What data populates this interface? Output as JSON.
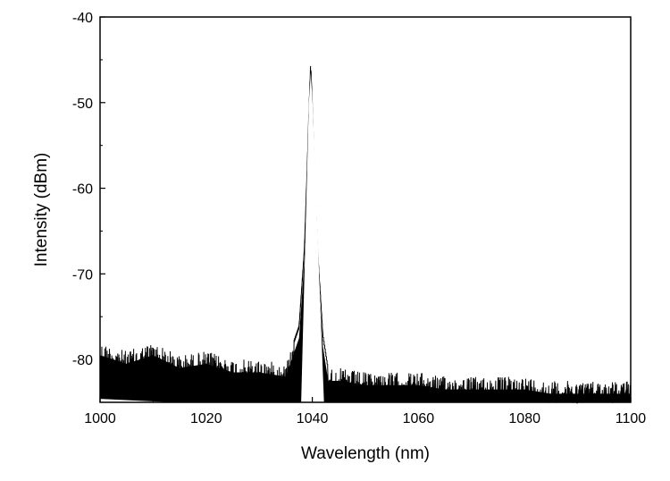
{
  "chart_data": {
    "type": "line",
    "title": "",
    "xlabel": "Wavelength (nm)",
    "ylabel": "Intensity (dBm)",
    "xlim": [
      1000,
      1100
    ],
    "ylim": [
      -85,
      -40
    ],
    "x_ticks": [
      1000,
      1020,
      1040,
      1060,
      1080,
      1100
    ],
    "x_tick_labels": [
      "1000",
      "1020",
      "1040",
      "1060",
      "1080",
      "1100"
    ],
    "y_ticks": [
      -80,
      -70,
      -60,
      -50,
      -40
    ],
    "y_tick_labels": [
      "-80",
      "-70",
      "-60",
      "-50",
      "-40"
    ],
    "grid": false,
    "legend": "none",
    "line_color": "#000000",
    "series": [
      {
        "peak": {
          "x": 1039.7,
          "y": -45.2
        },
        "envelope_x": [
          1000,
          1005,
          1010,
          1015,
          1020,
          1025,
          1030,
          1035,
          1037.5,
          1038.5,
          1039.0,
          1039.4,
          1039.7,
          1040.0,
          1040.4,
          1041.0,
          1042.0,
          1043.0,
          1045,
          1050,
          1055,
          1060,
          1065,
          1070,
          1075,
          1080,
          1085,
          1090,
          1095,
          1100
        ],
        "envelope_top": [
          -78,
          -79,
          -78,
          -79.5,
          -79,
          -80,
          -80,
          -80.5,
          -76,
          -67,
          -58,
          -50,
          -45.2,
          -50,
          -58,
          -67,
          -77,
          -81,
          -81,
          -81.5,
          -81.5,
          -81.5,
          -82,
          -82,
          -82,
          -82,
          -82.5,
          -82.5,
          -82.5,
          -82.5
        ],
        "envelope_bottom": [
          -84.6,
          -84.8,
          -85,
          -85,
          -85,
          -85,
          -85,
          -85,
          -85,
          -85,
          -85,
          -85,
          -85,
          -85,
          -85,
          -85,
          -85,
          -85,
          -85,
          -85,
          -85,
          -85,
          -85,
          -85,
          -85,
          -85,
          -85,
          -85,
          -85,
          -85
        ]
      }
    ]
  }
}
